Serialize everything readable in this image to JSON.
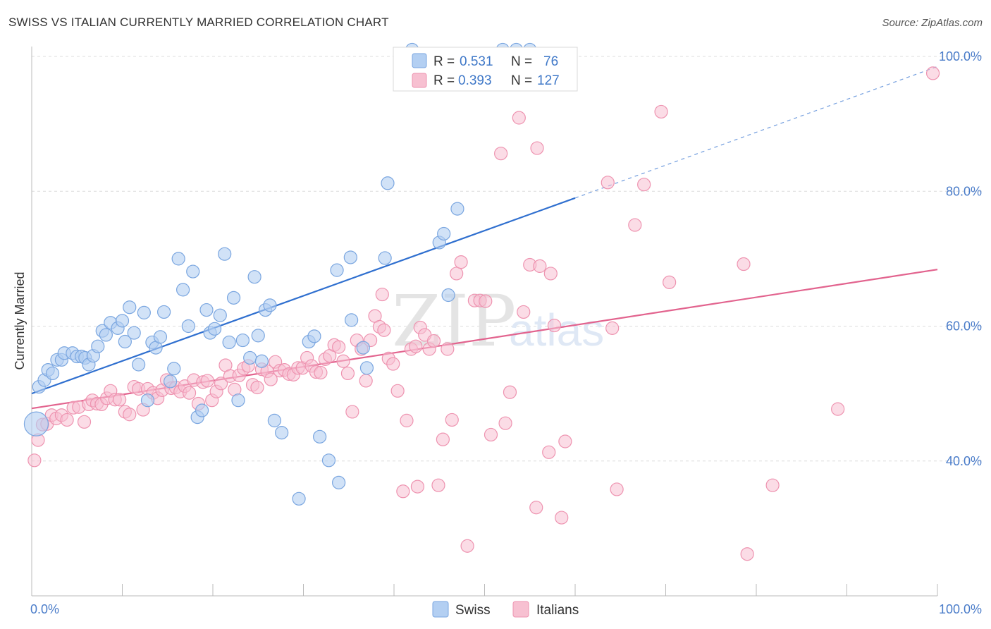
{
  "title": "SWISS VS ITALIAN CURRENTLY MARRIED CORRELATION CHART",
  "source": "Source: ZipAtlas.com",
  "watermark": {
    "zip": "ZIP",
    "atlas": "atlas"
  },
  "colors": {
    "swiss_fill": "#b3cff2",
    "swiss_stroke": "#7aa6e0",
    "swiss_line": "#2f6fcf",
    "italian_fill": "#f7c0d1",
    "italian_stroke": "#ee93b0",
    "italian_line": "#e2638e",
    "tick_text": "#4a7cc9",
    "grid": "#dcdcdc"
  },
  "legend_top": {
    "r_label": "R =",
    "n_label": "N =",
    "rows": [
      {
        "r": "0.531",
        "n": "76"
      },
      {
        "r": "0.393",
        "n": "127"
      }
    ]
  },
  "legend_bottom": [
    "Swiss",
    "Italians"
  ],
  "chart_data": {
    "type": "scatter",
    "title": "SWISS VS ITALIAN CURRENTLY MARRIED CORRELATION CHART",
    "xlabel": "",
    "ylabel": "Currently Married",
    "xlim": [
      0,
      100
    ],
    "ylim": [
      20,
      100
    ],
    "x_tick_labels": [
      "0.0%",
      "100.0%"
    ],
    "y_tick_labels": [
      "40.0%",
      "60.0%",
      "80.0%",
      "100.0%"
    ],
    "y_ticks": [
      40,
      60,
      80,
      100
    ],
    "grid": true,
    "legend_position": "top-center",
    "series": [
      {
        "name": "Swiss",
        "R": 0.531,
        "N": 76,
        "trend": {
          "x0": 0,
          "y0": 50,
          "x1": 60,
          "y1": 79,
          "x_dashed_end": 100,
          "y_dashed_end": 98.5
        },
        "points": [
          [
            0.5,
            45.5
          ],
          [
            0.8,
            51
          ],
          [
            1.4,
            52
          ],
          [
            1.8,
            53.5
          ],
          [
            2.3,
            53
          ],
          [
            2.8,
            55
          ],
          [
            3.3,
            55
          ],
          [
            3.6,
            56
          ],
          [
            4.5,
            56
          ],
          [
            5.0,
            55.5
          ],
          [
            5.5,
            55.5
          ],
          [
            5.9,
            55.3
          ],
          [
            6.3,
            54.3
          ],
          [
            6.8,
            55.6
          ],
          [
            7.3,
            57
          ],
          [
            7.8,
            59.3
          ],
          [
            8.2,
            58.7
          ],
          [
            8.7,
            60.5
          ],
          [
            9.5,
            59.7
          ],
          [
            10.0,
            60.8
          ],
          [
            10.3,
            57.7
          ],
          [
            10.8,
            62.8
          ],
          [
            11.3,
            59
          ],
          [
            11.8,
            54.3
          ],
          [
            12.4,
            62
          ],
          [
            12.8,
            49
          ],
          [
            13.3,
            57.6
          ],
          [
            13.7,
            56.8
          ],
          [
            14.2,
            58.4
          ],
          [
            14.6,
            62.1
          ],
          [
            15.3,
            51.8
          ],
          [
            15.7,
            53.7
          ],
          [
            16.2,
            70
          ],
          [
            16.7,
            65.4
          ],
          [
            17.3,
            60
          ],
          [
            17.8,
            68.1
          ],
          [
            18.3,
            46.5
          ],
          [
            18.8,
            47.5
          ],
          [
            19.3,
            62.4
          ],
          [
            19.7,
            59
          ],
          [
            20.2,
            59.6
          ],
          [
            20.8,
            61.6
          ],
          [
            21.3,
            70.7
          ],
          [
            21.8,
            57.6
          ],
          [
            22.3,
            64.2
          ],
          [
            22.8,
            49
          ],
          [
            23.3,
            57.9
          ],
          [
            24.1,
            55.3
          ],
          [
            24.6,
            67.3
          ],
          [
            25.0,
            58.6
          ],
          [
            25.4,
            54.8
          ],
          [
            25.8,
            62.4
          ],
          [
            26.3,
            63.1
          ],
          [
            26.8,
            46
          ],
          [
            27.6,
            44.2
          ],
          [
            30.6,
            57.7
          ],
          [
            31.2,
            58.5
          ],
          [
            29.5,
            34.4
          ],
          [
            31.8,
            43.6
          ],
          [
            32.8,
            40.1
          ],
          [
            33.7,
            68.3
          ],
          [
            33.9,
            36.8
          ],
          [
            35.2,
            70.2
          ],
          [
            35.3,
            60.9
          ],
          [
            36.6,
            56.8
          ],
          [
            37.0,
            53.8
          ],
          [
            39.0,
            70.1
          ],
          [
            39.3,
            81.2
          ],
          [
            45.0,
            72.4
          ],
          [
            45.5,
            73.7
          ],
          [
            46.0,
            64.6
          ],
          [
            47.0,
            77.4
          ],
          [
            42.0,
            101
          ],
          [
            52.0,
            101
          ],
          [
            53.5,
            101
          ],
          [
            55.0,
            101
          ]
        ]
      },
      {
        "name": "Italians",
        "R": 0.393,
        "N": 127,
        "trend": {
          "x0": 0,
          "y0": 47.8,
          "x1": 100,
          "y1": 68.4
        },
        "points": [
          [
            0.3,
            40.1
          ],
          [
            0.7,
            43.1
          ],
          [
            1.2,
            45.4
          ],
          [
            1.7,
            45.5
          ],
          [
            2.2,
            46.8
          ],
          [
            2.7,
            46.3
          ],
          [
            3.3,
            46.8
          ],
          [
            3.9,
            46.1
          ],
          [
            4.6,
            47.9
          ],
          [
            5.2,
            48
          ],
          [
            5.8,
            45.8
          ],
          [
            6.3,
            48.4
          ],
          [
            6.7,
            49
          ],
          [
            7.2,
            48.5
          ],
          [
            7.7,
            48.4
          ],
          [
            8.3,
            49.3
          ],
          [
            8.7,
            50.4
          ],
          [
            9.2,
            49.1
          ],
          [
            9.7,
            49.1
          ],
          [
            10.3,
            47.3
          ],
          [
            10.8,
            46.9
          ],
          [
            11.3,
            51
          ],
          [
            11.8,
            50.7
          ],
          [
            12.3,
            47.6
          ],
          [
            12.8,
            50.7
          ],
          [
            13.4,
            50.1
          ],
          [
            13.9,
            49.3
          ],
          [
            14.4,
            50.5
          ],
          [
            14.9,
            52
          ],
          [
            15.4,
            50.8
          ],
          [
            15.9,
            50.9
          ],
          [
            16.4,
            50.3
          ],
          [
            16.9,
            51.1
          ],
          [
            17.4,
            50.1
          ],
          [
            17.9,
            52
          ],
          [
            18.4,
            48.5
          ],
          [
            18.9,
            51.7
          ],
          [
            19.4,
            51.9
          ],
          [
            19.9,
            49
          ],
          [
            20.4,
            50.3
          ],
          [
            20.9,
            51.5
          ],
          [
            21.4,
            54.2
          ],
          [
            21.9,
            52.6
          ],
          [
            22.4,
            50.6
          ],
          [
            22.9,
            52.7
          ],
          [
            23.4,
            53.7
          ],
          [
            23.9,
            54.1
          ],
          [
            24.4,
            51.3
          ],
          [
            24.9,
            50.9
          ],
          [
            25.4,
            53.6
          ],
          [
            26.0,
            53.3
          ],
          [
            26.4,
            52.1
          ],
          [
            26.9,
            54.7
          ],
          [
            27.4,
            53.4
          ],
          [
            27.9,
            53.5
          ],
          [
            28.4,
            52.9
          ],
          [
            28.9,
            52.8
          ],
          [
            29.4,
            53.8
          ],
          [
            29.9,
            53.8
          ],
          [
            30.4,
            55.3
          ],
          [
            30.9,
            54.1
          ],
          [
            31.4,
            53.2
          ],
          [
            31.9,
            53.1
          ],
          [
            32.4,
            55.1
          ],
          [
            32.9,
            55.6
          ],
          [
            33.4,
            57.2
          ],
          [
            33.9,
            56.9
          ],
          [
            34.4,
            54.8
          ],
          [
            34.9,
            53
          ],
          [
            35.4,
            47.3
          ],
          [
            35.9,
            57.9
          ],
          [
            36.4,
            56.6
          ],
          [
            36.9,
            51.9
          ],
          [
            37.4,
            57.9
          ],
          [
            37.9,
            61.5
          ],
          [
            38.4,
            59.9
          ],
          [
            38.9,
            59.4
          ],
          [
            39.4,
            55.2
          ],
          [
            39.9,
            54.4
          ],
          [
            40.4,
            50.4
          ],
          [
            41.0,
            35.5
          ],
          [
            41.4,
            46
          ],
          [
            41.9,
            56.6
          ],
          [
            42.4,
            57
          ],
          [
            42.9,
            59.8
          ],
          [
            43.4,
            58.7
          ],
          [
            43.9,
            56.6
          ],
          [
            44.4,
            57.8
          ],
          [
            44.9,
            36.4
          ],
          [
            45.4,
            43.2
          ],
          [
            45.9,
            56.6
          ],
          [
            46.4,
            46.1
          ],
          [
            46.9,
            67.8
          ],
          [
            47.4,
            69.5
          ],
          [
            48.1,
            27.4
          ],
          [
            48.9,
            63.8
          ],
          [
            49.5,
            63.8
          ],
          [
            50.1,
            63.7
          ],
          [
            50.7,
            43.9
          ],
          [
            51.8,
            85.6
          ],
          [
            52.3,
            45.6
          ],
          [
            52.8,
            50.2
          ],
          [
            53.8,
            90.9
          ],
          [
            54.3,
            62.1
          ],
          [
            55.0,
            69.1
          ],
          [
            55.7,
            33.1
          ],
          [
            55.8,
            86.4
          ],
          [
            56.1,
            68.9
          ],
          [
            57.1,
            41.3
          ],
          [
            57.3,
            67.8
          ],
          [
            57.7,
            60.1
          ],
          [
            58.5,
            31.6
          ],
          [
            58.9,
            42.9
          ],
          [
            63.6,
            81.3
          ],
          [
            64.1,
            59.7
          ],
          [
            64.6,
            35.8
          ],
          [
            66.6,
            75
          ],
          [
            67.6,
            81
          ],
          [
            69.5,
            91.8
          ],
          [
            70.4,
            66.5
          ],
          [
            78.6,
            69.2
          ],
          [
            79.0,
            26.2
          ],
          [
            81.8,
            36.4
          ],
          [
            89.0,
            47.7
          ],
          [
            99.5,
            97.5
          ],
          [
            42.6,
            36.2
          ],
          [
            38.7,
            64.7
          ]
        ]
      }
    ]
  }
}
